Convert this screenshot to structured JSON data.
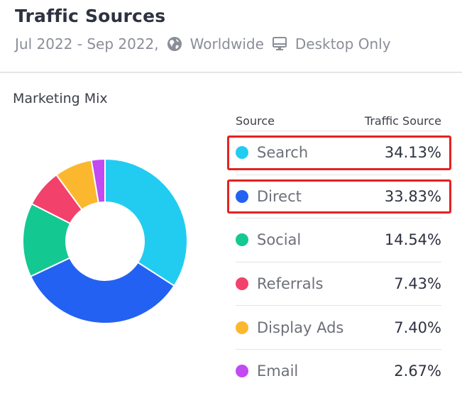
{
  "header": {
    "title": "Traffic Sources",
    "date_range": "Jul 2022 - Sep 2022,",
    "region": "Worldwide",
    "device": "Desktop Only",
    "region_icon": "globe-icon",
    "device_icon": "monitor-icon"
  },
  "section": {
    "label": "Marketing Mix"
  },
  "table": {
    "col_source": "Source",
    "col_value": "Traffic Source"
  },
  "chart_data": {
    "type": "pie",
    "style": "donut",
    "categories": [
      "Search",
      "Direct",
      "Social",
      "Referrals",
      "Display Ads",
      "Email"
    ],
    "values": [
      34.13,
      33.83,
      14.54,
      7.43,
      7.4,
      2.67
    ],
    "value_labels": [
      "34.13%",
      "33.83%",
      "14.54%",
      "7.43%",
      "7.40%",
      "2.67%"
    ],
    "colors": [
      "#22ccf0",
      "#2361f2",
      "#14c891",
      "#f2416b",
      "#fbb82e",
      "#c24af2"
    ],
    "legend": "right",
    "highlighted": [
      "Search",
      "Direct"
    ],
    "highlight_color": "#e52222"
  }
}
